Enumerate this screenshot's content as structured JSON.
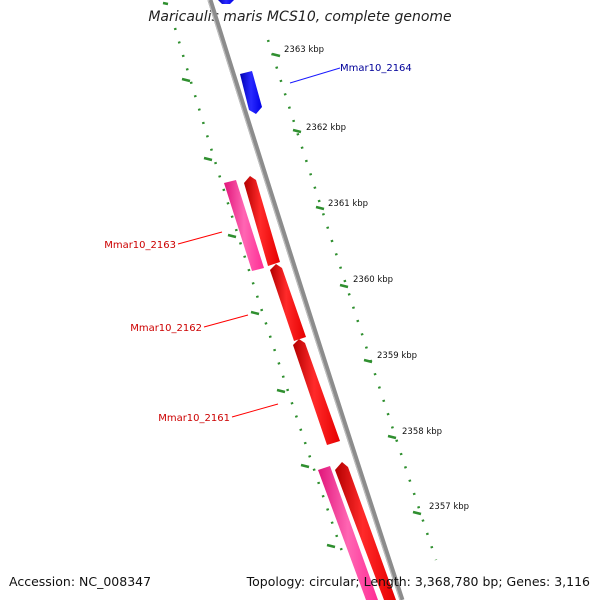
{
  "title": "Maricaulis maris MCS10, complete genome",
  "footer": {
    "accession": "Accession: NC_008347",
    "summary": "Topology: circular; Length: 3,368,780 bp; Genes: 3,116"
  },
  "scale_labels": [
    "2363 kbp",
    "2362 kbp",
    "2361 kbp",
    "2360 kbp",
    "2359 kbp",
    "2358 kbp",
    "2357 kbp"
  ],
  "genes": [
    {
      "label": "Mmar10_2164",
      "strand": "forward",
      "color": "#1a1aff"
    },
    {
      "label": "Mmar10_2163",
      "strand": "reverse",
      "color": "#ff0000"
    },
    {
      "label": "Mmar10_2162",
      "strand": "reverse",
      "color": "#ff0000"
    },
    {
      "label": "Mmar10_2161",
      "strand": "reverse",
      "color": "#ff0000"
    }
  ],
  "colors": {
    "forward_cds": "#1a1aff",
    "reverse_cds": "#ff0000",
    "reverse_gene": "#ff3399",
    "backbone": "#8c8c8c",
    "ticks": "#2f8f2f",
    "forward_label": "#000099",
    "reverse_label": "#cc0000"
  }
}
